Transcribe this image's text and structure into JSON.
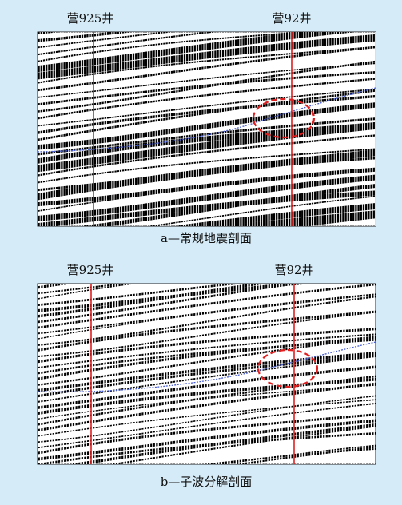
{
  "panels": [
    {
      "well_labels": [
        "营925井",
        "营92井"
      ],
      "caption": "a—常规地震剖面"
    },
    {
      "well_labels": [
        "营925井",
        "营92井"
      ],
      "caption": "b—子波分解剖面"
    }
  ]
}
